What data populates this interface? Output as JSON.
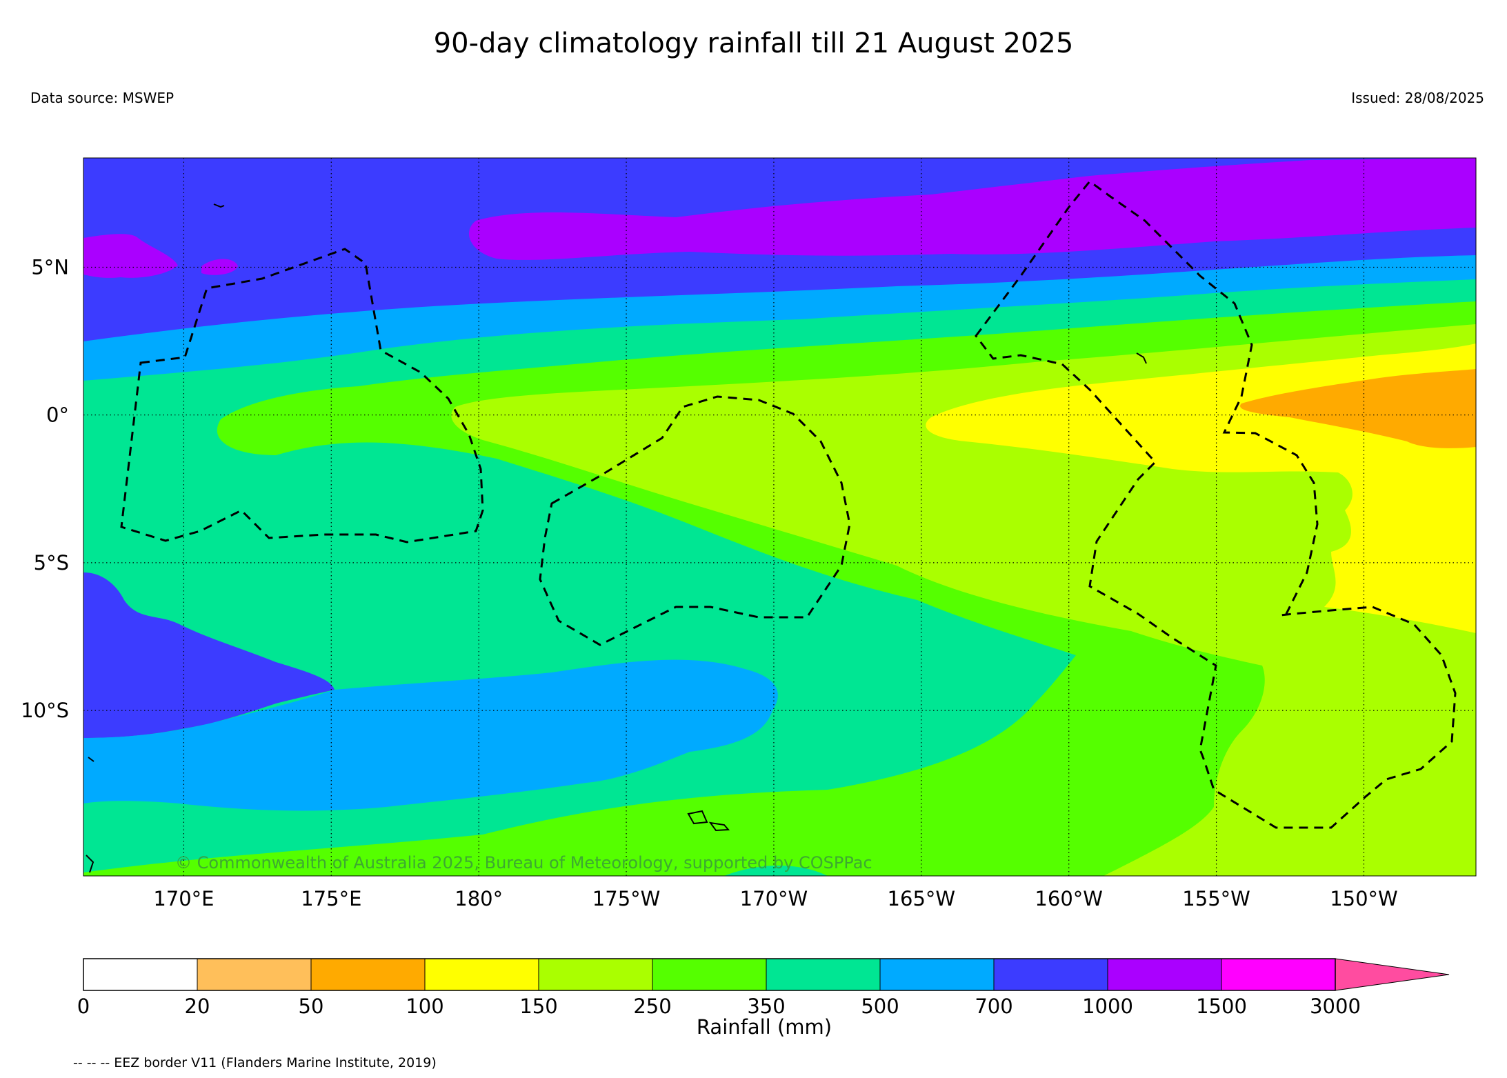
{
  "header": {
    "title": "90-day climatology rainfall till 21 August 2025",
    "data_source": "Data source: MSWEP",
    "issued": "Issued: 28/08/2025"
  },
  "map": {
    "extent": {
      "lon_min": 166.6,
      "lon_max": 213.8,
      "lat_min": -15.6,
      "lat_max": 8.7
    },
    "lat_ticks": [
      {
        "value": 5,
        "label": "5°N"
      },
      {
        "value": 0,
        "label": "0°"
      },
      {
        "value": -5,
        "label": "5°S"
      },
      {
        "value": -10,
        "label": "10°S"
      }
    ],
    "lon_ticks": [
      {
        "value": 170,
        "label": "170°E"
      },
      {
        "value": 175,
        "label": "175°E"
      },
      {
        "value": 180,
        "label": "180°"
      },
      {
        "value": 185,
        "label": "175°W"
      },
      {
        "value": 190,
        "label": "170°W"
      },
      {
        "value": 195,
        "label": "165°W"
      },
      {
        "value": 200,
        "label": "160°W"
      },
      {
        "value": 205,
        "label": "155°W"
      },
      {
        "value": 210,
        "label": "150°W"
      }
    ],
    "grid": true,
    "copyright": "© Commonwealth of Australia 2025, Bureau of Meteorology, supported by COSPPac"
  },
  "colorbar": {
    "label": "Rainfall (mm)",
    "bins": [
      {
        "from": "0",
        "to": "20",
        "color": "#ffffff"
      },
      {
        "from": "20",
        "to": "50",
        "color": "#ffbf5a"
      },
      {
        "from": "50",
        "to": "100",
        "color": "#ffaa00"
      },
      {
        "from": "100",
        "to": "150",
        "color": "#ffff00"
      },
      {
        "from": "150",
        "to": "250",
        "color": "#aaff00"
      },
      {
        "from": "250",
        "to": "350",
        "color": "#55ff00"
      },
      {
        "from": "350",
        "to": "500",
        "color": "#00e693"
      },
      {
        "from": "500",
        "to": "700",
        "color": "#00aaff"
      },
      {
        "from": "700",
        "to": "1000",
        "color": "#3c3cff"
      },
      {
        "from": "1000",
        "to": "1500",
        "color": "#aa00ff"
      },
      {
        "from": "1500",
        "to": "3000",
        "color": "#ff00ff"
      }
    ],
    "tick_labels": [
      "0",
      "20",
      "50",
      "100",
      "150",
      "250",
      "350",
      "500",
      "700",
      "1000",
      "1500",
      "3000"
    ],
    "extend_color": "#ff4ca0"
  },
  "footer": {
    "legend_note": "-- -- -- EEZ border V11 (Flanders Marine Institute, 2019)"
  }
}
